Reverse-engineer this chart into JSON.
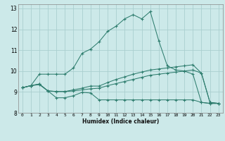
{
  "title": "",
  "xlabel": "Humidex (Indice chaleur)",
  "bg_color": "#cce9e9",
  "line_color": "#2e7d6e",
  "grid_color": "#aacfcf",
  "xlim": [
    -0.5,
    23.5
  ],
  "ylim": [
    8.0,
    13.2
  ],
  "xticks": [
    0,
    1,
    2,
    3,
    4,
    5,
    6,
    7,
    8,
    9,
    10,
    11,
    12,
    13,
    14,
    15,
    16,
    17,
    18,
    19,
    20,
    21,
    22,
    23
  ],
  "yticks": [
    8,
    9,
    10,
    11,
    12,
    13
  ],
  "series1": [
    9.2,
    9.3,
    9.35,
    9.05,
    8.72,
    8.72,
    8.82,
    8.98,
    8.95,
    8.62,
    8.62,
    8.62,
    8.62,
    8.62,
    8.62,
    8.62,
    8.62,
    8.62,
    8.62,
    8.62,
    8.62,
    8.5,
    8.45,
    8.45
  ],
  "series2": [
    9.2,
    9.3,
    9.38,
    9.05,
    9.02,
    9.02,
    9.05,
    9.1,
    9.15,
    9.18,
    9.3,
    9.4,
    9.5,
    9.6,
    9.7,
    9.8,
    9.85,
    9.9,
    9.95,
    10.0,
    10.05,
    9.9,
    8.5,
    8.45
  ],
  "series3": [
    9.2,
    9.3,
    9.38,
    9.05,
    9.02,
    9.02,
    9.1,
    9.18,
    9.28,
    9.28,
    9.45,
    9.6,
    9.72,
    9.85,
    9.95,
    10.05,
    10.1,
    10.15,
    10.2,
    10.25,
    10.3,
    9.9,
    8.5,
    8.45
  ],
  "series4": [
    9.2,
    9.3,
    9.85,
    9.85,
    9.85,
    9.85,
    10.15,
    10.85,
    11.05,
    11.4,
    11.9,
    12.15,
    12.5,
    12.7,
    12.5,
    12.85,
    11.45,
    10.25,
    10.05,
    10.0,
    9.85,
    8.5,
    8.45,
    8.45
  ]
}
